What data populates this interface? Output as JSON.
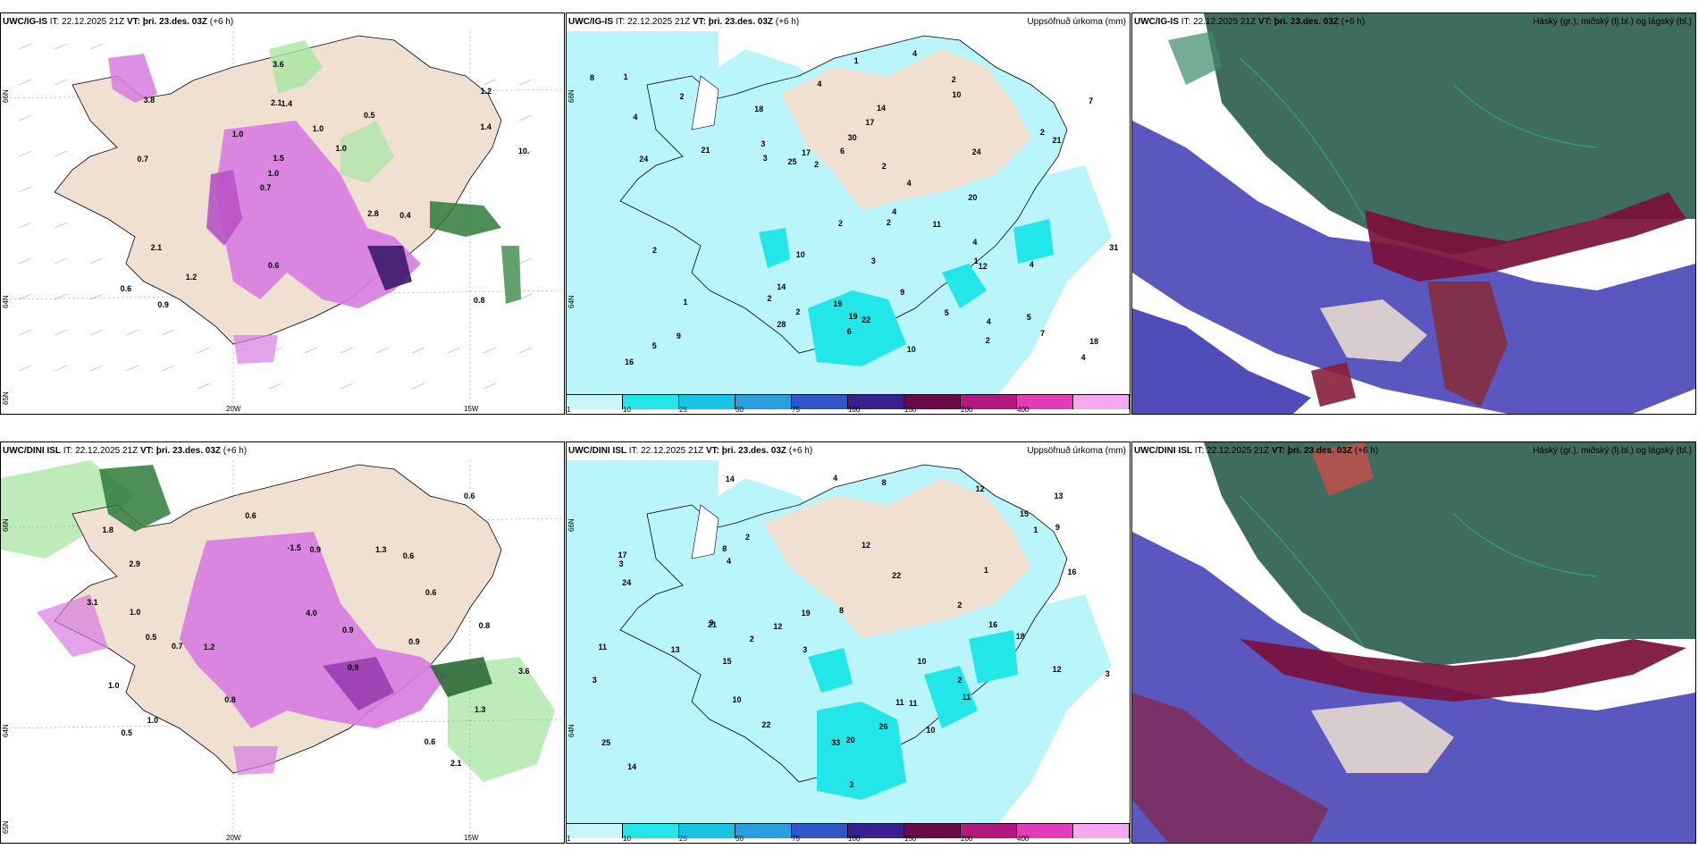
{
  "rows": [
    {
      "model": "UWC/IG-IS",
      "it_label": "IT:",
      "it_value": "22.12.2025 21Z",
      "vt_label": "VT:",
      "vt_value": "þri. 23.des. 03Z",
      "lead": "(+6 h)",
      "precip_title": "Uppsöfnuð úrkoma (mm)",
      "cloud_title": "Háský (gr.), miðský (fj.bl.) og lágský (bl.)",
      "lon_labels": [
        "20W",
        "15W"
      ],
      "lat_labels_left": [
        "66N",
        "64N",
        "65N"
      ],
      "lat_labels_mid": [
        "66N",
        "64N"
      ],
      "temp_values": [
        "0.8",
        "0.7",
        "1.2",
        "0.7",
        "0.5",
        "0.9",
        "2.1",
        "1.0",
        "2.1",
        "1.0",
        "0.6",
        "1.2",
        "1.4",
        "1.0",
        "0.4",
        "3.8",
        "3.6",
        "10.",
        "2.8",
        "1.4",
        "1.0",
        "0.6",
        "1.5"
      ],
      "precip_values": [
        "5",
        "4",
        "4",
        "3",
        "4",
        "4",
        "5",
        "2",
        "4",
        "2",
        "4",
        "3",
        "2",
        "1",
        "5",
        "3",
        "1",
        "2",
        "2",
        "7",
        "8",
        "9",
        "6",
        "11",
        "12",
        "10",
        "17",
        "17",
        "21",
        "9",
        "7",
        "10",
        "14",
        "16",
        "2",
        "10",
        "19",
        "24",
        "24",
        "19",
        "21",
        "14",
        "18",
        "28",
        "20",
        "25",
        "30",
        "22",
        "31",
        "18",
        "4",
        "6",
        "1",
        "2",
        "1",
        "2",
        "2",
        "2",
        "4",
        "4",
        "2"
      ]
    },
    {
      "model": "UWC/DINI ISL",
      "it_label": "IT:",
      "it_value": "22.12.2025 21Z",
      "vt_label": "VT:",
      "vt_value": "þri. 23.des. 03Z",
      "lead": "(+6 h)",
      "precip_title": "Uppsöfnuð úrkoma (mm)",
      "cloud_title": "Háský (gr.), miðský (fj.bl.) og lágský (bl.)",
      "lon_labels": [
        "20W",
        "15W"
      ],
      "lat_labels_left": [
        "66N",
        "64N",
        "65N"
      ],
      "lat_labels_mid": [
        "66N",
        "64N"
      ],
      "temp_values": [
        "2.1",
        "0.5",
        "0.9",
        "1.8",
        "1.3",
        "2.9",
        "1.0",
        "1.2",
        "0.6",
        "-1.5",
        "1.3",
        "0.6",
        "0.8",
        "0.6",
        "0.9",
        "1.0",
        "0.9",
        "4.0",
        "3.1",
        "0.5",
        "0.6",
        "0.9",
        "0.6",
        "3.6",
        "0.8",
        "1.0",
        "0.7"
      ],
      "precip_values": [
        "8",
        "8",
        "10",
        "11",
        "12",
        "10",
        "20",
        "13",
        "11",
        "11",
        "3",
        "9",
        "10",
        "8",
        "12",
        "15",
        "16",
        "16",
        "22",
        "15",
        "12",
        "12",
        "14",
        "22",
        "24",
        "26",
        "25",
        "33",
        "11",
        "13",
        "19",
        "18",
        "17",
        "21",
        "14",
        "3",
        "4",
        "2",
        "3",
        "1",
        "4",
        "2",
        "2",
        "9",
        "3",
        "3",
        "2",
        "1"
      ]
    }
  ],
  "colorbar": {
    "ticks": [
      "1",
      "10",
      "25",
      "50",
      "75",
      "100",
      "150",
      "200",
      "400"
    ],
    "colors": [
      "#c8f7fb",
      "#22e6e8",
      "#19c3e6",
      "#2a9fe0",
      "#2f57c8",
      "#3a1f8f",
      "#6b0a4a",
      "#b01a7e",
      "#e23cb6",
      "#f3a8ef"
    ]
  },
  "legend_colors": {
    "land": "#efe0d2",
    "precip_light": "#b9f5fb",
    "cloud_high": "#2e5f50",
    "cloud_mid": "#7a0f3a",
    "cloud_low": "#3d3ab3",
    "temp_pos": "#d77be0",
    "temp_green": "#4aa05a"
  }
}
